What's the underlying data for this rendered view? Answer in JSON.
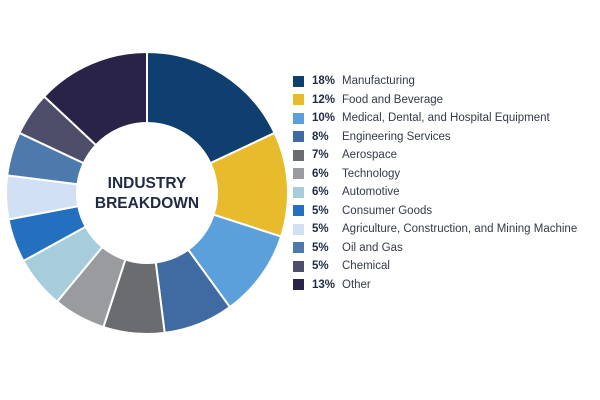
{
  "chart_data": {
    "type": "pie",
    "center_title": [
      "INDUSTRY",
      "BREAKDOWN"
    ],
    "slices": [
      {
        "pct_label": "18%",
        "label": "Manufacturing",
        "value": 18,
        "color": "#0e3f6e"
      },
      {
        "pct_label": "12%",
        "label": "Food and Beverage",
        "value": 12,
        "color": "#e7bb2c"
      },
      {
        "pct_label": "10%",
        "label": "Medical, Dental, and Hospital Equipment",
        "value": 10,
        "color": "#5b9fdb"
      },
      {
        "pct_label": "8%",
        "label": "Engineering Services",
        "value": 8,
        "color": "#3f6aa2"
      },
      {
        "pct_label": "7%",
        "label": "Aerospace",
        "value": 7,
        "color": "#6b6c70"
      },
      {
        "pct_label": "6%",
        "label": "Technology",
        "value": 6,
        "color": "#9a9b9e"
      },
      {
        "pct_label": "6%",
        "label": "Automotive",
        "value": 6,
        "color": "#a7ccdb"
      },
      {
        "pct_label": "5%",
        "label": "Consumer Goods",
        "value": 5,
        "color": "#2470be"
      },
      {
        "pct_label": "5%",
        "label": "Agriculture, Construction, and Mining Machine",
        "value": 5,
        "color": "#d2e0f3"
      },
      {
        "pct_label": "5%",
        "label": "Oil and Gas",
        "value": 5,
        "color": "#4e79ad"
      },
      {
        "pct_label": "5%",
        "label": "Chemical",
        "value": 5,
        "color": "#4e4e6a"
      },
      {
        "pct_label": "13%",
        "label": "Other",
        "value": 13,
        "color": "#282347"
      }
    ]
  }
}
